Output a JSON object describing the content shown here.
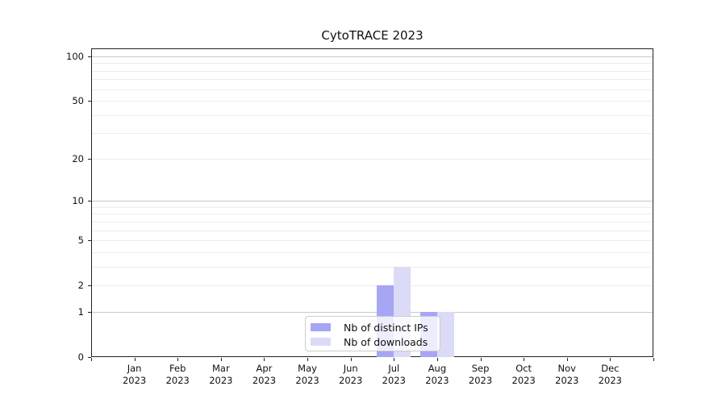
{
  "chart_data": {
    "type": "bar",
    "title": "CytoTRACE 2023",
    "x_months": [
      "Jan",
      "Feb",
      "Mar",
      "Apr",
      "May",
      "Jun",
      "Jul",
      "Aug",
      "Sep",
      "Oct",
      "Nov",
      "Dec"
    ],
    "x_year": "2023",
    "series": [
      {
        "name": "Nb of distinct IPs",
        "key": "distinct-ips",
        "color": "#a6a6f5",
        "values": [
          0,
          0,
          0,
          0,
          0,
          0,
          2,
          1,
          0,
          0,
          0,
          0
        ]
      },
      {
        "name": "Nb of downloads",
        "key": "downloads",
        "color": "#dbdbf8",
        "values": [
          0,
          0,
          0,
          0,
          0,
          0,
          3,
          1,
          0,
          0,
          0,
          0
        ]
      }
    ],
    "y_ticks": [
      0,
      1,
      2,
      5,
      10,
      20,
      50,
      100
    ],
    "y_scale": "log1p",
    "ylim": [
      0,
      113
    ],
    "grid_major": [
      1,
      10,
      100
    ],
    "grid_minor": [
      2,
      3,
      4,
      5,
      6,
      7,
      8,
      9,
      20,
      30,
      40,
      50,
      60,
      70,
      80,
      90
    ],
    "grid": "horizontal",
    "legend_position": "lower center"
  }
}
